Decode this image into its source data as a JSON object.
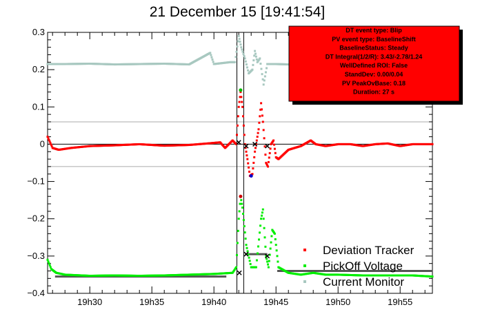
{
  "chart_data": {
    "type": "scatter",
    "title": "21 December 15 [19:41:54]",
    "xlabel": "",
    "ylabel": "",
    "x_range_minutes": [
      26.6,
      57.6
    ],
    "ylim": [
      -0.4,
      0.3
    ],
    "x_ticks": [
      {
        "label": "19h30",
        "minute": 30
      },
      {
        "label": "19h35",
        "minute": 35
      },
      {
        "label": "19h40",
        "minute": 40
      },
      {
        "label": "19h45",
        "minute": 45
      },
      {
        "label": "19h50",
        "minute": 50
      },
      {
        "label": "19h55",
        "minute": 55
      }
    ],
    "y_ticks": [
      {
        "label": "0.3",
        "value": 0.3
      },
      {
        "label": "0.2",
        "value": 0.2
      },
      {
        "label": "0.1",
        "value": 0.1
      },
      {
        "label": "0",
        "value": 0
      },
      {
        "label": "−0.1",
        "value": -0.1
      },
      {
        "label": "−0.2",
        "value": -0.2
      },
      {
        "label": "−0.3",
        "value": -0.3
      },
      {
        "label": "−0.4",
        "value": -0.4
      }
    ],
    "thresholds": [
      0.06,
      -0.06
    ],
    "event_lines_minutes": [
      41.85,
      42.4
    ],
    "series": [
      {
        "name": "Deviation Tracker",
        "color": "#ff0000",
        "points": [
          [
            26.6,
            0.02
          ],
          [
            27.0,
            -0.01
          ],
          [
            27.5,
            -0.015
          ],
          [
            28.5,
            -0.01
          ],
          [
            30,
            -0.005
          ],
          [
            32,
            -0.003
          ],
          [
            34,
            0
          ],
          [
            36,
            -0.004
          ],
          [
            38,
            -0.002
          ],
          [
            39.5,
            0.002
          ],
          [
            40.5,
            0.005
          ],
          [
            40.9,
            -0.01
          ],
          [
            41.2,
            0.0
          ],
          [
            41.5,
            0.01
          ],
          [
            41.8,
            0.0
          ],
          [
            42.0,
            0.1
          ],
          [
            42.15,
            0.14
          ],
          [
            42.3,
            0.1
          ],
          [
            42.5,
            0.0
          ],
          [
            42.7,
            -0.04
          ],
          [
            42.9,
            -0.085
          ],
          [
            43.1,
            -0.08
          ],
          [
            43.3,
            -0.02
          ],
          [
            43.6,
            0.04
          ],
          [
            43.8,
            0.11
          ],
          [
            43.95,
            0.06
          ],
          [
            44.2,
            -0.05
          ],
          [
            44.35,
            -0.06
          ],
          [
            44.6,
            0.0
          ],
          [
            44.8,
            0.01
          ],
          [
            45.0,
            -0.035
          ],
          [
            45.2,
            -0.04
          ],
          [
            46,
            -0.015
          ],
          [
            47,
            -0.005
          ],
          [
            47.8,
            0.01
          ],
          [
            48.2,
            0.0
          ],
          [
            49,
            -0.005
          ],
          [
            50,
            0.0
          ],
          [
            51,
            0.0
          ],
          [
            52,
            -0.005
          ],
          [
            53,
            0.0
          ],
          [
            54,
            0.002
          ],
          [
            55,
            -0.005
          ],
          [
            56,
            0.0
          ],
          [
            57.6,
            0.0
          ]
        ]
      },
      {
        "name": "PickOff Voltage",
        "color": "#00ee00",
        "points": [
          [
            26.6,
            -0.31
          ],
          [
            26.9,
            -0.335
          ],
          [
            27.3,
            -0.345
          ],
          [
            28,
            -0.35
          ],
          [
            30,
            -0.353
          ],
          [
            32,
            -0.352
          ],
          [
            34,
            -0.353
          ],
          [
            36,
            -0.352
          ],
          [
            38,
            -0.35
          ],
          [
            40,
            -0.348
          ],
          [
            41.5,
            -0.345
          ],
          [
            41.8,
            -0.33
          ],
          [
            42.0,
            -0.2
          ],
          [
            42.15,
            -0.14
          ],
          [
            42.3,
            -0.17
          ],
          [
            42.6,
            -0.27
          ],
          [
            43.0,
            -0.33
          ],
          [
            43.4,
            -0.33
          ],
          [
            43.8,
            -0.2
          ],
          [
            43.95,
            -0.175
          ],
          [
            44.2,
            -0.3
          ],
          [
            44.4,
            -0.33
          ],
          [
            44.7,
            -0.23
          ],
          [
            44.9,
            -0.24
          ],
          [
            45.2,
            -0.33
          ],
          [
            46,
            -0.345
          ],
          [
            47,
            -0.35
          ],
          [
            48,
            -0.345
          ],
          [
            49,
            -0.35
          ],
          [
            50,
            -0.35
          ],
          [
            52,
            -0.352
          ],
          [
            54,
            -0.352
          ],
          [
            56,
            -0.352
          ],
          [
            57.6,
            -0.355
          ]
        ]
      },
      {
        "name": "Current Monitor",
        "color": "#a8c8c0",
        "points": [
          [
            26.6,
            0.215
          ],
          [
            28,
            0.215
          ],
          [
            30,
            0.216
          ],
          [
            32,
            0.214
          ],
          [
            34,
            0.215
          ],
          [
            36,
            0.216
          ],
          [
            38,
            0.214
          ],
          [
            39.7,
            0.245
          ],
          [
            40,
            0.215
          ],
          [
            41.3,
            0.22
          ],
          [
            41.7,
            0.22
          ],
          [
            42.0,
            0.29
          ],
          [
            42.2,
            0.26
          ],
          [
            42.5,
            0.23
          ],
          [
            42.8,
            0.19
          ],
          [
            43.1,
            0.2
          ],
          [
            43.3,
            0.25
          ],
          [
            43.5,
            0.22
          ],
          [
            43.7,
            0.23
          ],
          [
            44.0,
            0.16
          ],
          [
            44.3,
            0.215
          ],
          [
            45,
            0.215
          ],
          [
            46,
            0.214
          ],
          [
            47,
            0.215
          ],
          [
            47.8,
            0.24
          ],
          [
            48,
            0.215
          ],
          [
            50,
            0.215
          ],
          [
            52,
            0.214
          ],
          [
            54,
            0.215
          ],
          [
            56,
            0.216
          ],
          [
            57.6,
            0.215
          ]
        ]
      }
    ],
    "level_segments": [
      {
        "x": [
          27.2,
          41.0
        ],
        "y": -0.355
      },
      {
        "x": [
          42.5,
          44.3
        ],
        "y": -0.295
      },
      {
        "x": [
          45.1,
          57.6
        ],
        "y": -0.34
      }
    ],
    "markers": [
      {
        "x": 42.15,
        "y": 0.145,
        "color": "#00bb00"
      },
      {
        "x": 42.15,
        "y": -0.14,
        "color": "#cc0000"
      },
      {
        "x": 43.0,
        "y": -0.085,
        "color": "#0000cc"
      },
      {
        "x": 42.0,
        "y": 0.005,
        "color": "#000000"
      },
      {
        "x": 42.6,
        "y": -0.005,
        "color": "#000000"
      },
      {
        "x": 43.3,
        "y": 0.0,
        "color": "#000000"
      },
      {
        "x": 44.3,
        "y": -0.005,
        "color": "#000000"
      },
      {
        "x": 42.05,
        "y": -0.345,
        "color": "#000000"
      },
      {
        "x": 42.6,
        "y": -0.295,
        "color": "#000000"
      },
      {
        "x": 44.3,
        "y": -0.3,
        "color": "#000000"
      }
    ],
    "legend": {
      "placement": "bottom-right",
      "entries": [
        "Deviation Tracker",
        "PickOff Voltage",
        "Current Monitor"
      ]
    }
  },
  "info_box": {
    "background": "#ff0000",
    "lines": [
      "DT event type: Blip",
      "PV event type: BaselineShift",
      "BaselineStatus: Steady",
      "DT Integral(1/2/R): 3.43/-2.78/1.24",
      "WellDefined ROI: False",
      "StandDev: 0.00/0.04",
      "PV PeakOvBase: 0.18",
      "Duration: 27 s"
    ]
  }
}
